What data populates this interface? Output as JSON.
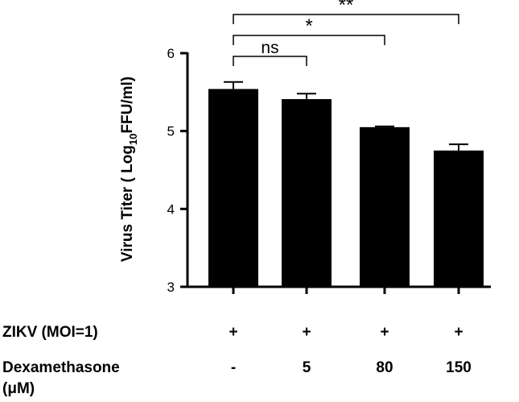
{
  "chart_data": {
    "type": "bar",
    "categories": [
      "-",
      "5",
      "80",
      "150"
    ],
    "values": [
      5.54,
      5.41,
      5.05,
      4.75
    ],
    "errors": [
      0.09,
      0.07,
      0.01,
      0.08
    ],
    "ylabel_prefix": "Virus Titer ( Log",
    "ylabel_sub": "10",
    "ylabel_suffix": "FFU/ml)",
    "ylim": [
      3,
      6
    ],
    "yticks": [
      "3",
      "4",
      "5",
      "6"
    ],
    "bar_color": "#000000",
    "significance": [
      {
        "from": 0,
        "to": 1,
        "label": "ns"
      },
      {
        "from": 0,
        "to": 2,
        "label": "*"
      },
      {
        "from": 0,
        "to": 3,
        "label": "**"
      }
    ]
  },
  "table": {
    "zikv_label": "ZIKV (MOI=1)",
    "zikv_values": [
      "+",
      "+",
      "+",
      "+"
    ],
    "dex_label_line1": "Dexamethasone",
    "dex_label_line2": "(μM)",
    "dex_values": [
      "-",
      "5",
      "80",
      "150"
    ]
  }
}
